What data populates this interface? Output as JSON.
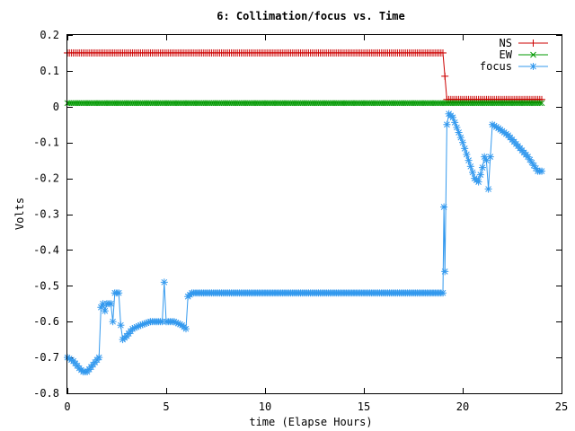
{
  "chart_data": {
    "type": "line",
    "title": "6: Collimation/focus vs. Time",
    "xlabel": "time (Elapse Hours)",
    "ylabel": "Volts",
    "xlim": [
      0,
      25
    ],
    "ylim": [
      -0.8,
      0.2
    ],
    "x_ticks": [
      0,
      5,
      10,
      15,
      20,
      25
    ],
    "x_tick_labels": [
      "0",
      "5",
      "10",
      "15",
      "20",
      "25"
    ],
    "y_ticks": [
      0.2,
      0.1,
      0,
      -0.1,
      -0.2,
      -0.3,
      -0.4,
      -0.5,
      -0.6,
      -0.7,
      -0.8
    ],
    "y_tick_labels": [
      "0.2",
      "0.1",
      "0",
      "-0.1",
      "-0.2",
      "-0.3",
      "-0.4",
      "-0.5",
      "-0.6",
      "-0.7",
      "-0.8"
    ],
    "grid": false,
    "legend_position": "top-right",
    "series": [
      {
        "name": "NS",
        "color": "#cc0000",
        "marker": "plus",
        "points": [
          [
            0,
            0.15
          ],
          [
            19.0,
            0.15
          ],
          [
            19.2,
            0.02
          ],
          [
            24,
            0.02
          ]
        ]
      },
      {
        "name": "EW",
        "color": "#009900",
        "marker": "cross",
        "points": [
          [
            0,
            0.01
          ],
          [
            24,
            0.01
          ]
        ]
      },
      {
        "name": "focus",
        "color": "#3399ee",
        "marker": "star",
        "points": [
          [
            0,
            -0.7
          ],
          [
            0.3,
            -0.71
          ],
          [
            0.6,
            -0.73
          ],
          [
            0.8,
            -0.74
          ],
          [
            1.0,
            -0.74
          ],
          [
            1.3,
            -0.72
          ],
          [
            1.6,
            -0.7
          ],
          [
            1.7,
            -0.56
          ],
          [
            1.8,
            -0.55
          ],
          [
            1.9,
            -0.57
          ],
          [
            2.0,
            -0.55
          ],
          [
            2.2,
            -0.55
          ],
          [
            2.3,
            -0.6
          ],
          [
            2.4,
            -0.52
          ],
          [
            2.6,
            -0.52
          ],
          [
            2.7,
            -0.61
          ],
          [
            2.8,
            -0.65
          ],
          [
            3.0,
            -0.64
          ],
          [
            3.3,
            -0.62
          ],
          [
            3.7,
            -0.61
          ],
          [
            4.2,
            -0.6
          ],
          [
            4.8,
            -0.6
          ],
          [
            4.9,
            -0.49
          ],
          [
            5.0,
            -0.6
          ],
          [
            5.4,
            -0.6
          ],
          [
            5.8,
            -0.61
          ],
          [
            6.0,
            -0.62
          ],
          [
            6.1,
            -0.53
          ],
          [
            6.3,
            -0.52
          ],
          [
            19.0,
            -0.52
          ],
          [
            19.05,
            -0.28
          ],
          [
            19.1,
            -0.46
          ],
          [
            19.2,
            -0.05
          ],
          [
            19.3,
            -0.02
          ],
          [
            19.5,
            -0.03
          ],
          [
            20.0,
            -0.1
          ],
          [
            20.3,
            -0.15
          ],
          [
            20.6,
            -0.2
          ],
          [
            20.8,
            -0.21
          ],
          [
            21.0,
            -0.17
          ],
          [
            21.1,
            -0.14
          ],
          [
            21.2,
            -0.15
          ],
          [
            21.3,
            -0.23
          ],
          [
            21.5,
            -0.05
          ],
          [
            21.8,
            -0.06
          ],
          [
            22.3,
            -0.08
          ],
          [
            22.8,
            -0.11
          ],
          [
            23.3,
            -0.14
          ],
          [
            23.8,
            -0.18
          ],
          [
            24.0,
            -0.18
          ]
        ]
      }
    ]
  }
}
